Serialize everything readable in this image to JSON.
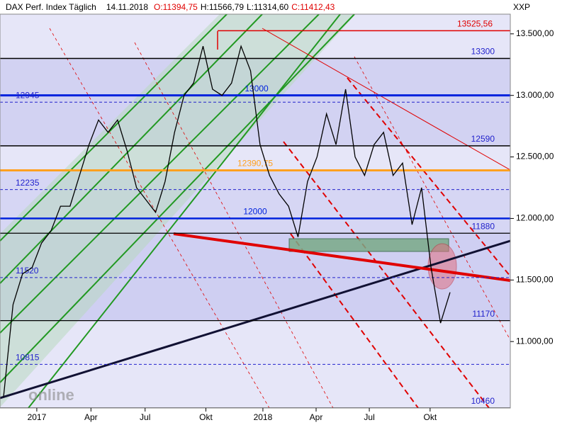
{
  "chart_data": {
    "type": "line",
    "title": {
      "name": "DAX Perf. Index Täglich",
      "date": "14.11.2018",
      "open": "O:11394,75",
      "high": "H:11566,79",
      "low": "L:11314,60",
      "close": "C:11412,43"
    },
    "axis_label": "XXP",
    "watermark": "online",
    "ylim": [
      10460,
      13660
    ],
    "yticks": [
      {
        "value": 11000,
        "label": "11.000,00"
      },
      {
        "value": 11500,
        "label": "11.500,00"
      },
      {
        "value": 12000,
        "label": "12.000,00"
      },
      {
        "value": 12500,
        "label": "12.500,00"
      },
      {
        "value": 13000,
        "label": "13.000,00"
      },
      {
        "value": 13500,
        "label": "13.500,00"
      }
    ],
    "xlim": [
      0,
      47
    ],
    "xticks": [
      {
        "value": 3.5,
        "label": "2017"
      },
      {
        "value": 9.2,
        "label": "Apr"
      },
      {
        "value": 14.9,
        "label": "Jul"
      },
      {
        "value": 21.3,
        "label": "Okt"
      },
      {
        "value": 27.3,
        "label": "2018"
      },
      {
        "value": 32.9,
        "label": "Apr"
      },
      {
        "value": 38.5,
        "label": "Jul"
      },
      {
        "value": 44.9,
        "label": "Okt"
      }
    ],
    "series": [
      {
        "name": "DAX",
        "color": "#000000",
        "values": [
          10550,
          11300,
          11550,
          11600,
          11800,
          11900,
          12100,
          12100,
          12350,
          12600,
          12800,
          12700,
          12800,
          12550,
          12250,
          12150,
          12050,
          12300,
          12700,
          13000,
          13100,
          13400,
          13050,
          13000,
          13100,
          13400,
          13200,
          12600,
          12350,
          12200,
          12100,
          11850,
          12300,
          12500,
          12850,
          12600,
          13050,
          12500,
          12350,
          12600,
          12700,
          12350,
          12450,
          11950,
          12250,
          11600,
          11150,
          11400
        ]
      }
    ],
    "levels": [
      {
        "value": 13525.56,
        "label": "13525,56",
        "color": "#e00000"
      },
      {
        "value": 13300,
        "label": "13300",
        "color": "#000000"
      },
      {
        "value": 13000,
        "label": "13000",
        "color": "#0022dd"
      },
      {
        "value": 12945,
        "label": "12945",
        "color": "#2222cc"
      },
      {
        "value": 12590,
        "label": "12590",
        "color": "#000000"
      },
      {
        "value": 12390.75,
        "label": "12390,75",
        "color": "#ffa020"
      },
      {
        "value": 12235,
        "label": "12235",
        "color": "#2222cc"
      },
      {
        "value": 12000,
        "label": "12000",
        "color": "#0022dd"
      },
      {
        "value": 11880,
        "label": "11880",
        "color": "#000000"
      },
      {
        "value": 11520,
        "label": "11520",
        "color": "#2222cc"
      },
      {
        "value": 11170,
        "label": "11170",
        "color": "#000000"
      },
      {
        "value": 10815,
        "label": "10815",
        "color": "#2222cc"
      },
      {
        "value": 10460,
        "label": "10460",
        "color": "#000000"
      }
    ]
  }
}
